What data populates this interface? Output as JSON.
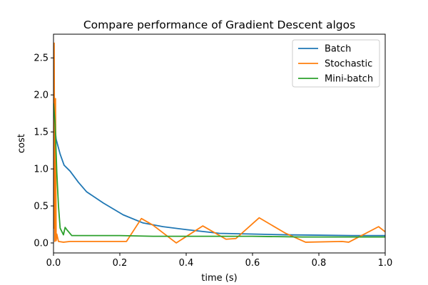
{
  "chart_data": {
    "type": "line",
    "title": "Compare performance of Gradient Descent algos",
    "xlabel": "time  (s)",
    "ylabel": "cost",
    "xlim": [
      0,
      1.0
    ],
    "ylim": [
      -0.135,
      2.82
    ],
    "xticks": [
      "0.0",
      "0.2",
      "0.4",
      "0.6",
      "0.8",
      "1.0"
    ],
    "yticks": [
      "0.0",
      "0.5",
      "1.0",
      "1.5",
      "2.0",
      "2.5"
    ],
    "grid": false,
    "legend_position": "top-right",
    "series": [
      {
        "name": "Batch",
        "color": "#1f77b4",
        "x": [
          0,
          0.008,
          0.02,
          0.032,
          0.05,
          0.075,
          0.1,
          0.15,
          0.21,
          0.27,
          0.33,
          0.4,
          0.5,
          0.6,
          0.7,
          0.8,
          0.9,
          1.0
        ],
        "y": [
          1.78,
          1.4,
          1.2,
          1.05,
          0.97,
          0.82,
          0.69,
          0.54,
          0.38,
          0.27,
          0.22,
          0.18,
          0.13,
          0.12,
          0.11,
          0.105,
          0.1,
          0.1
        ]
      },
      {
        "name": "Stochastic",
        "color": "#ff7f0e",
        "x": [
          0,
          0.002,
          0.004,
          0.006,
          0.008,
          0.01,
          0.015,
          0.03,
          0.05,
          0.1,
          0.22,
          0.265,
          0.3,
          0.37,
          0.45,
          0.52,
          0.55,
          0.62,
          0.7,
          0.76,
          0.87,
          0.89,
          0.98,
          1.0
        ],
        "y": [
          0.2,
          2.7,
          0.02,
          1.95,
          0.03,
          0.12,
          0.02,
          0.01,
          0.02,
          0.02,
          0.02,
          0.33,
          0.24,
          0.0,
          0.23,
          0.05,
          0.06,
          0.34,
          0.13,
          0.01,
          0.02,
          0.01,
          0.22,
          0.15
        ]
      },
      {
        "name": "Mini-batch",
        "color": "#2ca02c",
        "x": [
          0,
          0.005,
          0.01,
          0.015,
          0.02,
          0.03,
          0.035,
          0.04,
          0.055,
          0.1,
          0.2,
          0.3,
          0.45,
          0.6,
          0.75,
          0.9,
          1.0
        ],
        "y": [
          1.88,
          1.6,
          0.95,
          0.5,
          0.2,
          0.11,
          0.21,
          0.18,
          0.1,
          0.1,
          0.1,
          0.09,
          0.09,
          0.09,
          0.08,
          0.08,
          0.08
        ]
      }
    ]
  }
}
